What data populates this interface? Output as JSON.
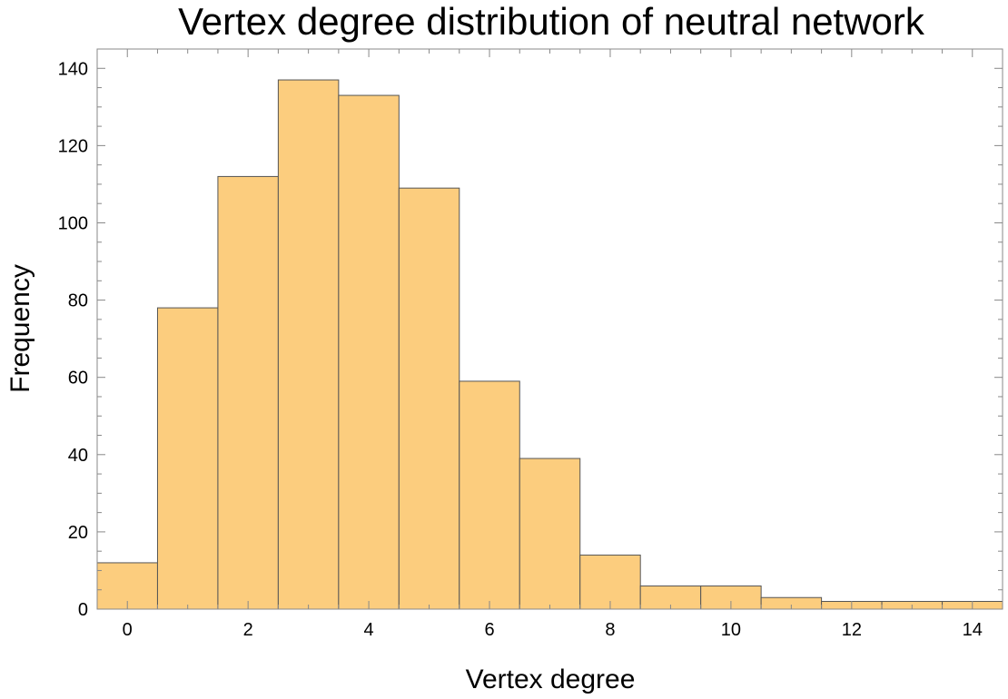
{
  "chart_data": {
    "type": "bar",
    "title": "Vertex degree distribution of neutral network",
    "xlabel": "Vertex degree",
    "ylabel": "Frequency",
    "categories": [
      0,
      1,
      2,
      3,
      4,
      5,
      6,
      7,
      8,
      9,
      10,
      11,
      12,
      13,
      14
    ],
    "values": [
      12,
      78,
      112,
      137,
      133,
      109,
      59,
      39,
      14,
      6,
      6,
      3,
      2,
      2,
      2
    ],
    "xlim": [
      -0.5,
      14.5
    ],
    "ylim": [
      0,
      145
    ],
    "xticks": [
      0,
      2,
      4,
      6,
      8,
      10,
      12,
      14
    ],
    "yticks": [
      0,
      20,
      40,
      60,
      80,
      100,
      120,
      140
    ],
    "bar_color": "#fccd7e",
    "grid": false
  }
}
